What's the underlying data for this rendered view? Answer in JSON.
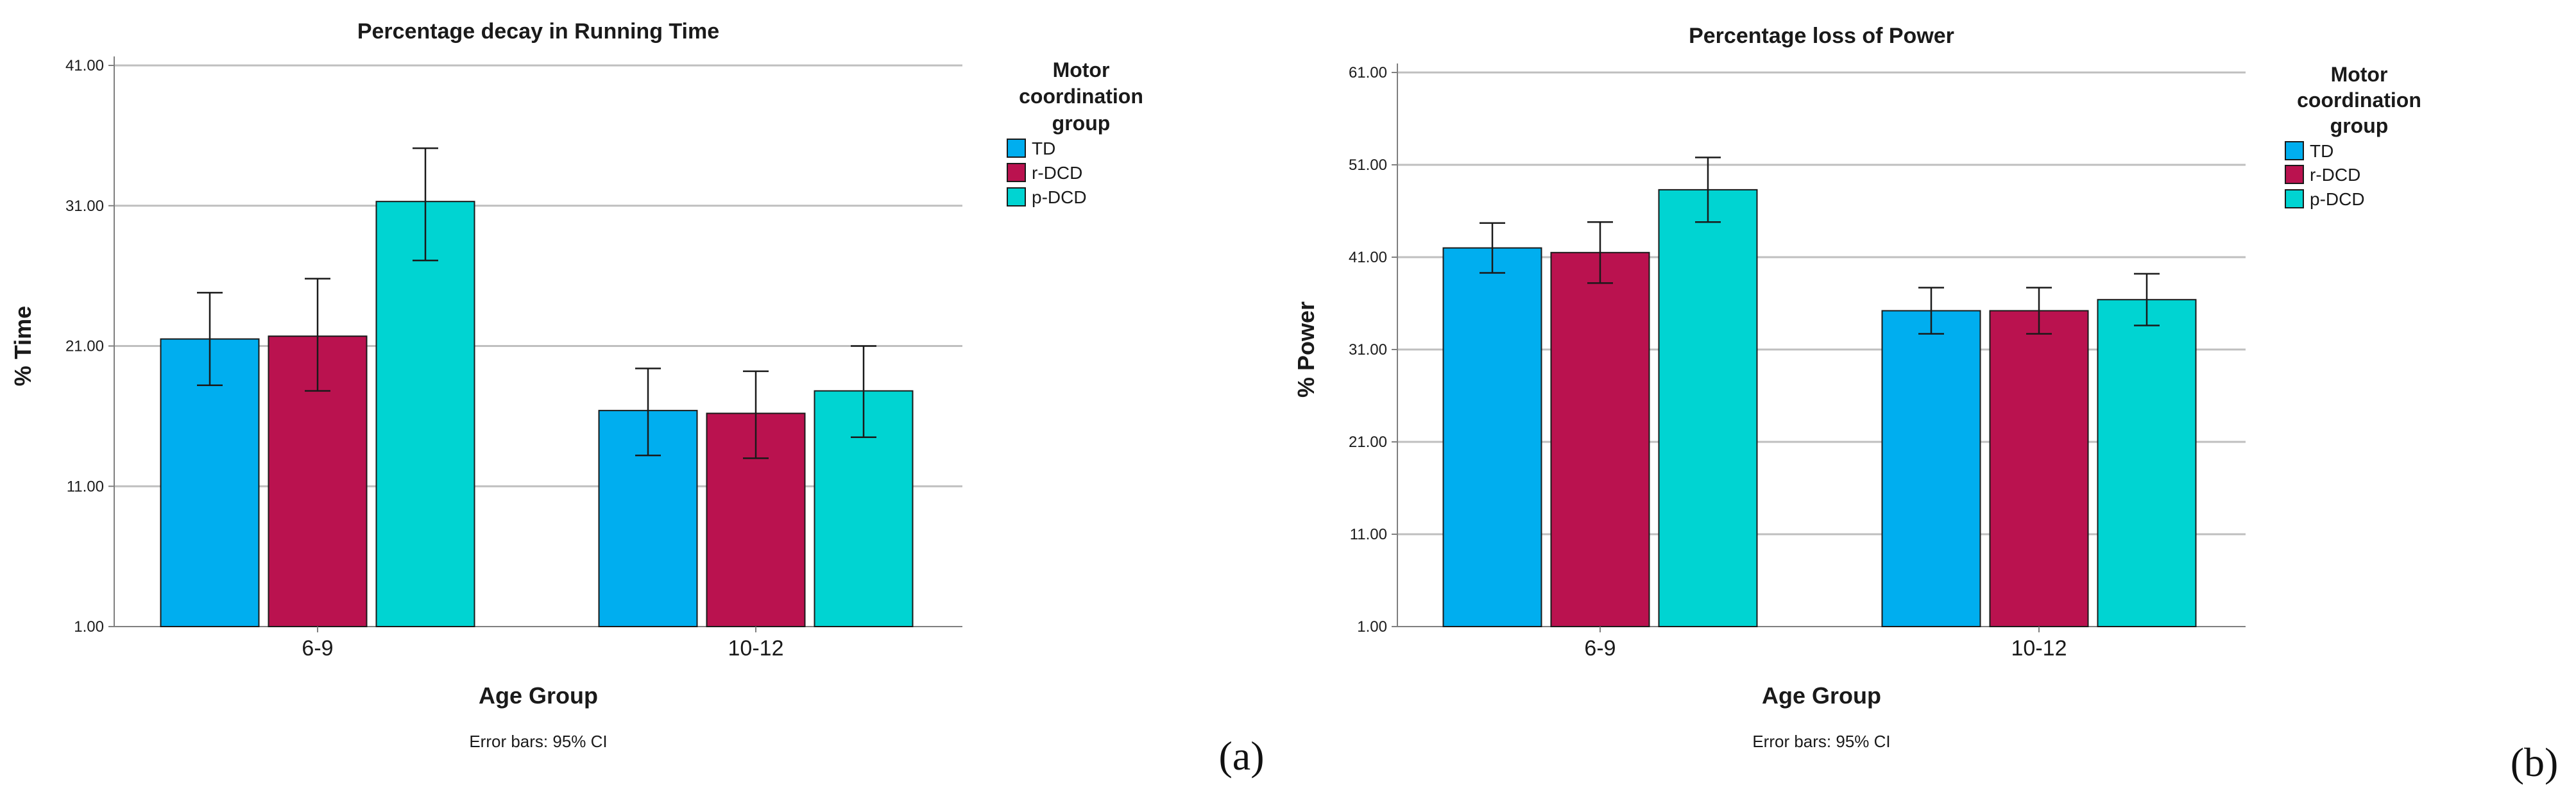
{
  "colors": {
    "TD": "#00AEEF",
    "r-DCD": "#BA124F",
    "p-DCD": "#00D4D2",
    "grid": "#bfbfbf",
    "axis": "#7f7f7f"
  },
  "chart_data": [
    {
      "type": "bar",
      "panel_label": "(a)",
      "title": "Percentage decay in Running Time",
      "xlabel": "Age Group",
      "ylabel": "% Time",
      "ylim": [
        1,
        41
      ],
      "yticks": [
        "1.00",
        "11.00",
        "21.00",
        "31.00",
        "41.00"
      ],
      "categories": [
        "6-9",
        "10-12"
      ],
      "legend_title_lines": [
        "Motor",
        "coordination",
        "group"
      ],
      "note": "Error bars: 95% CI",
      "series": [
        {
          "name": "TD",
          "values": [
            21.5,
            16.4
          ],
          "ci_low": [
            18.2,
            13.2
          ],
          "ci_high": [
            24.8,
            19.4
          ]
        },
        {
          "name": "r-DCD",
          "values": [
            21.7,
            16.2
          ],
          "ci_low": [
            17.8,
            13.0
          ],
          "ci_high": [
            25.8,
            19.2
          ]
        },
        {
          "name": "p-DCD",
          "values": [
            31.3,
            17.8
          ],
          "ci_low": [
            27.1,
            14.5
          ],
          "ci_high": [
            35.1,
            21.0
          ]
        }
      ]
    },
    {
      "type": "bar",
      "panel_label": "(b)",
      "title": "Percentage loss of Power",
      "xlabel": "Age Group",
      "ylabel": "% Power",
      "ylim": [
        1,
        61
      ],
      "yticks": [
        "1.00",
        "11.00",
        "21.00",
        "31.00",
        "41.00",
        "51.00",
        "61.00"
      ],
      "categories": [
        "6-9",
        "10-12"
      ],
      "legend_title_lines": [
        "Motor",
        "coordination",
        "group"
      ],
      "note": "Error bars: 95% CI",
      "series": [
        {
          "name": "TD",
          "values": [
            42.0,
            35.2
          ],
          "ci_low": [
            39.3,
            32.7
          ],
          "ci_high": [
            44.7,
            37.7
          ]
        },
        {
          "name": "r-DCD",
          "values": [
            41.5,
            35.2
          ],
          "ci_low": [
            38.2,
            32.7
          ],
          "ci_high": [
            44.8,
            37.7
          ]
        },
        {
          "name": "p-DCD",
          "values": [
            48.3,
            36.4
          ],
          "ci_low": [
            44.8,
            33.6
          ],
          "ci_high": [
            51.8,
            39.2
          ]
        }
      ]
    }
  ]
}
